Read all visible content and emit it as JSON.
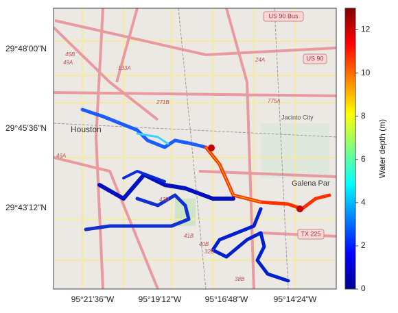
{
  "map": {
    "lat_labels": [
      "29°48'00\"N",
      "29°45'36\"N",
      "29°43'12\"N"
    ],
    "lon_labels": [
      "95°21'36\"W",
      "95°19'12\"W",
      "95°16'48\"W",
      "95°14'24\"W"
    ],
    "places": [
      "Houston",
      "Jacinto City",
      "Galena Par"
    ],
    "shields": [
      "US 90 Bus",
      "US 90",
      "TX 225"
    ],
    "routes": [
      "45B",
      "49A",
      "133A",
      "271B",
      "24A",
      "775A",
      "46A",
      "43B",
      "41B",
      "40B",
      "32B",
      "38B"
    ]
  },
  "colorbar": {
    "label": "Water depth (m)",
    "lim": [
      0,
      13
    ],
    "ticks": [
      0,
      2,
      4,
      6,
      8,
      10,
      12
    ]
  }
}
